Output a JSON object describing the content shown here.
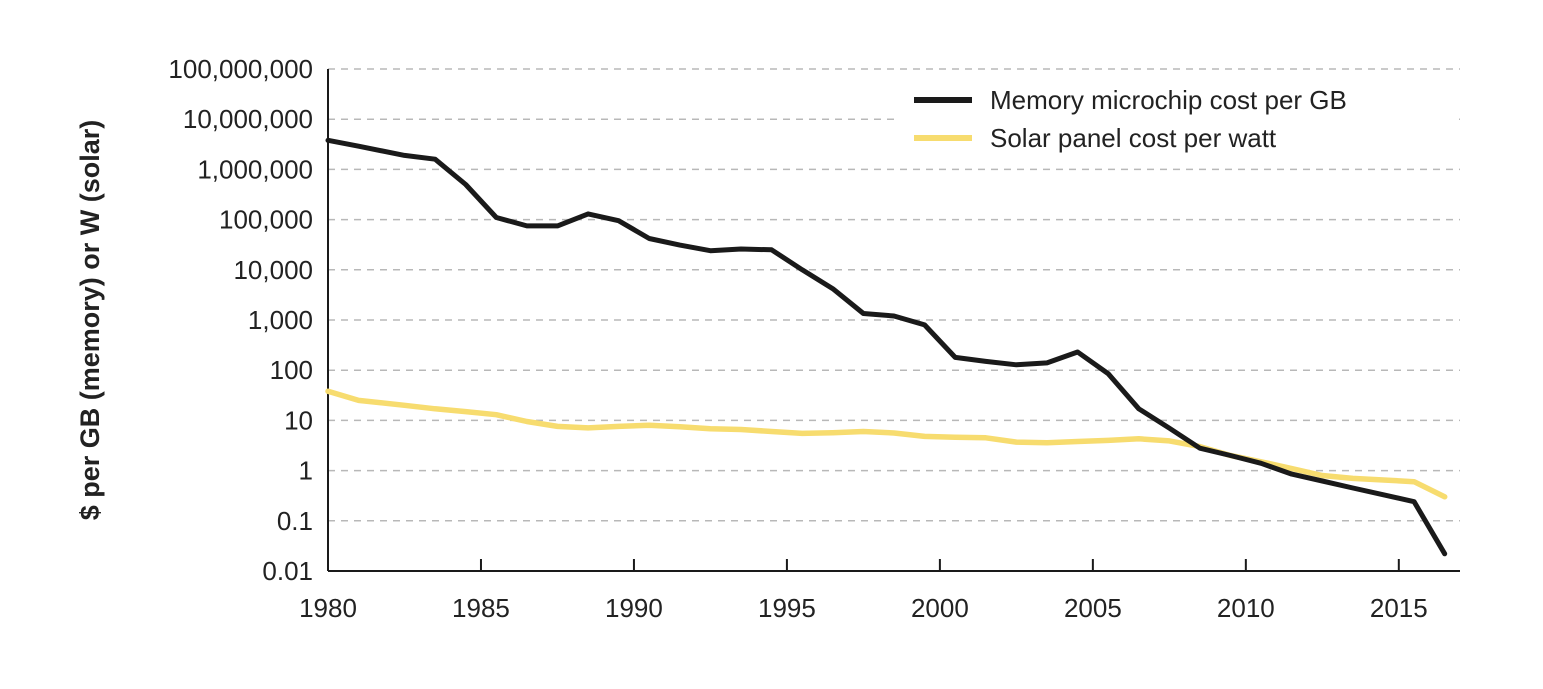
{
  "chart_data": {
    "type": "line",
    "ylabel": "$ per GB (memory) or W (solar)",
    "xlabel": "",
    "y_scale": "log",
    "ylim": [
      0.01,
      100000000
    ],
    "xlim": [
      1980,
      2017
    ],
    "x_ticks": [
      1980,
      1985,
      1990,
      1995,
      2000,
      2005,
      2010,
      2015
    ],
    "x_tick_labels": [
      "1980",
      "1985",
      "1990",
      "1995",
      "2000",
      "2005",
      "2010",
      "2015"
    ],
    "y_ticks": [
      0.01,
      0.1,
      1,
      10,
      100,
      1000,
      10000,
      100000,
      1000000,
      10000000,
      100000000
    ],
    "y_tick_labels": [
      "0.01",
      "0.1",
      "1",
      "10",
      "100",
      "1,000",
      "10,000",
      "100,000",
      "1,000,000",
      "10,000,000",
      "100,000,000"
    ],
    "grid": "horizontal-dashed",
    "legend_position": "top-right",
    "series": [
      {
        "name": "Memory microchip cost per GB",
        "color": "#1a1a1a",
        "points": [
          [
            1980,
            3800000
          ],
          [
            1981,
            2900000
          ],
          [
            1982.5,
            1900000
          ],
          [
            1983.5,
            1600000
          ],
          [
            1984.5,
            500000
          ],
          [
            1985.5,
            110000
          ],
          [
            1986.5,
            75000
          ],
          [
            1987.5,
            75000
          ],
          [
            1988.5,
            130000
          ],
          [
            1989.5,
            95000
          ],
          [
            1990.5,
            42000
          ],
          [
            1991.5,
            31000
          ],
          [
            1992.5,
            24000
          ],
          [
            1993.5,
            26000
          ],
          [
            1994.5,
            25000
          ],
          [
            1995.5,
            10000
          ],
          [
            1996.5,
            4200
          ],
          [
            1997.5,
            1350
          ],
          [
            1998.5,
            1200
          ],
          [
            1999.5,
            800
          ],
          [
            2000.5,
            180
          ],
          [
            2001.5,
            150
          ],
          [
            2002.5,
            128
          ],
          [
            2003.5,
            140
          ],
          [
            2004.5,
            230
          ],
          [
            2005.5,
            85
          ],
          [
            2006.5,
            17
          ],
          [
            2007.5,
            7
          ],
          [
            2008.5,
            2.8
          ],
          [
            2009.5,
            2.0
          ],
          [
            2010.5,
            1.4
          ],
          [
            2011.5,
            0.85
          ],
          [
            2012.5,
            0.62
          ],
          [
            2013.5,
            0.45
          ],
          [
            2014.5,
            0.33
          ],
          [
            2015.5,
            0.24
          ],
          [
            2016.5,
            0.022
          ]
        ]
      },
      {
        "name": "Solar panel cost per watt",
        "color": "#f7dc6f",
        "points": [
          [
            1980,
            38
          ],
          [
            1981,
            25
          ],
          [
            1982.5,
            20
          ],
          [
            1983.5,
            17
          ],
          [
            1984.5,
            15
          ],
          [
            1985.5,
            13
          ],
          [
            1986.5,
            9.5
          ],
          [
            1987.5,
            7.6
          ],
          [
            1988.5,
            7.1
          ],
          [
            1989.5,
            7.6
          ],
          [
            1990.5,
            8.0
          ],
          [
            1991.5,
            7.5
          ],
          [
            1992.5,
            6.8
          ],
          [
            1993.5,
            6.6
          ],
          [
            1994.5,
            6.0
          ],
          [
            1995.5,
            5.5
          ],
          [
            1996.5,
            5.7
          ],
          [
            1997.5,
            6.0
          ],
          [
            1998.5,
            5.6
          ],
          [
            1999.5,
            4.8
          ],
          [
            2000.5,
            4.6
          ],
          [
            2001.5,
            4.5
          ],
          [
            2002.5,
            3.7
          ],
          [
            2003.5,
            3.6
          ],
          [
            2004.5,
            3.8
          ],
          [
            2005.5,
            4.0
          ],
          [
            2006.5,
            4.3
          ],
          [
            2007.5,
            3.9
          ],
          [
            2008.5,
            3.0
          ],
          [
            2009.5,
            2.0
          ],
          [
            2010.5,
            1.5
          ],
          [
            2011.5,
            1.1
          ],
          [
            2012.5,
            0.8
          ],
          [
            2013.5,
            0.7
          ],
          [
            2014.5,
            0.65
          ],
          [
            2015.5,
            0.6
          ],
          [
            2016.5,
            0.3
          ]
        ]
      }
    ]
  }
}
